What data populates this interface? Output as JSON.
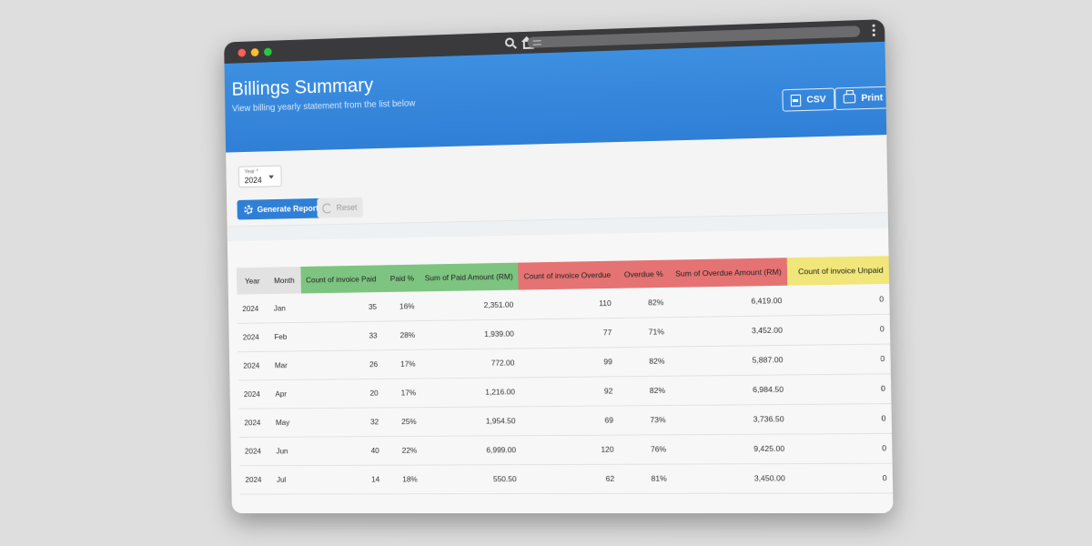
{
  "header": {
    "title": "Billings Summary",
    "subtitle": "View billing yearly statement from the list below",
    "csv_label": "CSV",
    "print_label": "Print"
  },
  "controls": {
    "year_label": "Year *",
    "year_value": "2024",
    "generate_label": "Generate Report",
    "reset_label": "Reset"
  },
  "colors": {
    "header_blue": "#3d8fe0",
    "paid_green": "#7dc480",
    "overdue_red": "#e57373",
    "unpaid_yellow": "#f0e67a"
  },
  "table": {
    "columns": [
      "Year",
      "Month",
      "Count of invoice Paid",
      "Paid %",
      "Sum of Paid Amount (RM)",
      "Count of invoice Overdue",
      "Overdue %",
      "Sum of Overdue Amount (RM)",
      "Count of invoice Unpaid"
    ],
    "rows": [
      [
        "2024",
        "Jan",
        "35",
        "16%",
        "2,351.00",
        "110",
        "82%",
        "6,419.00",
        "0"
      ],
      [
        "2024",
        "Feb",
        "33",
        "28%",
        "1,939.00",
        "77",
        "71%",
        "3,452.00",
        "0"
      ],
      [
        "2024",
        "Mar",
        "26",
        "17%",
        "772.00",
        "99",
        "82%",
        "5,887.00",
        "0"
      ],
      [
        "2024",
        "Apr",
        "20",
        "17%",
        "1,216.00",
        "92",
        "82%",
        "6,984.50",
        "0"
      ],
      [
        "2024",
        "May",
        "32",
        "25%",
        "1,954.50",
        "69",
        "73%",
        "3,736.50",
        "0"
      ],
      [
        "2024",
        "Jun",
        "40",
        "22%",
        "6,999.00",
        "120",
        "76%",
        "9,425.00",
        "0"
      ],
      [
        "2024",
        "Jul",
        "14",
        "18%",
        "550.50",
        "62",
        "81%",
        "3,450.00",
        "0"
      ]
    ]
  }
}
